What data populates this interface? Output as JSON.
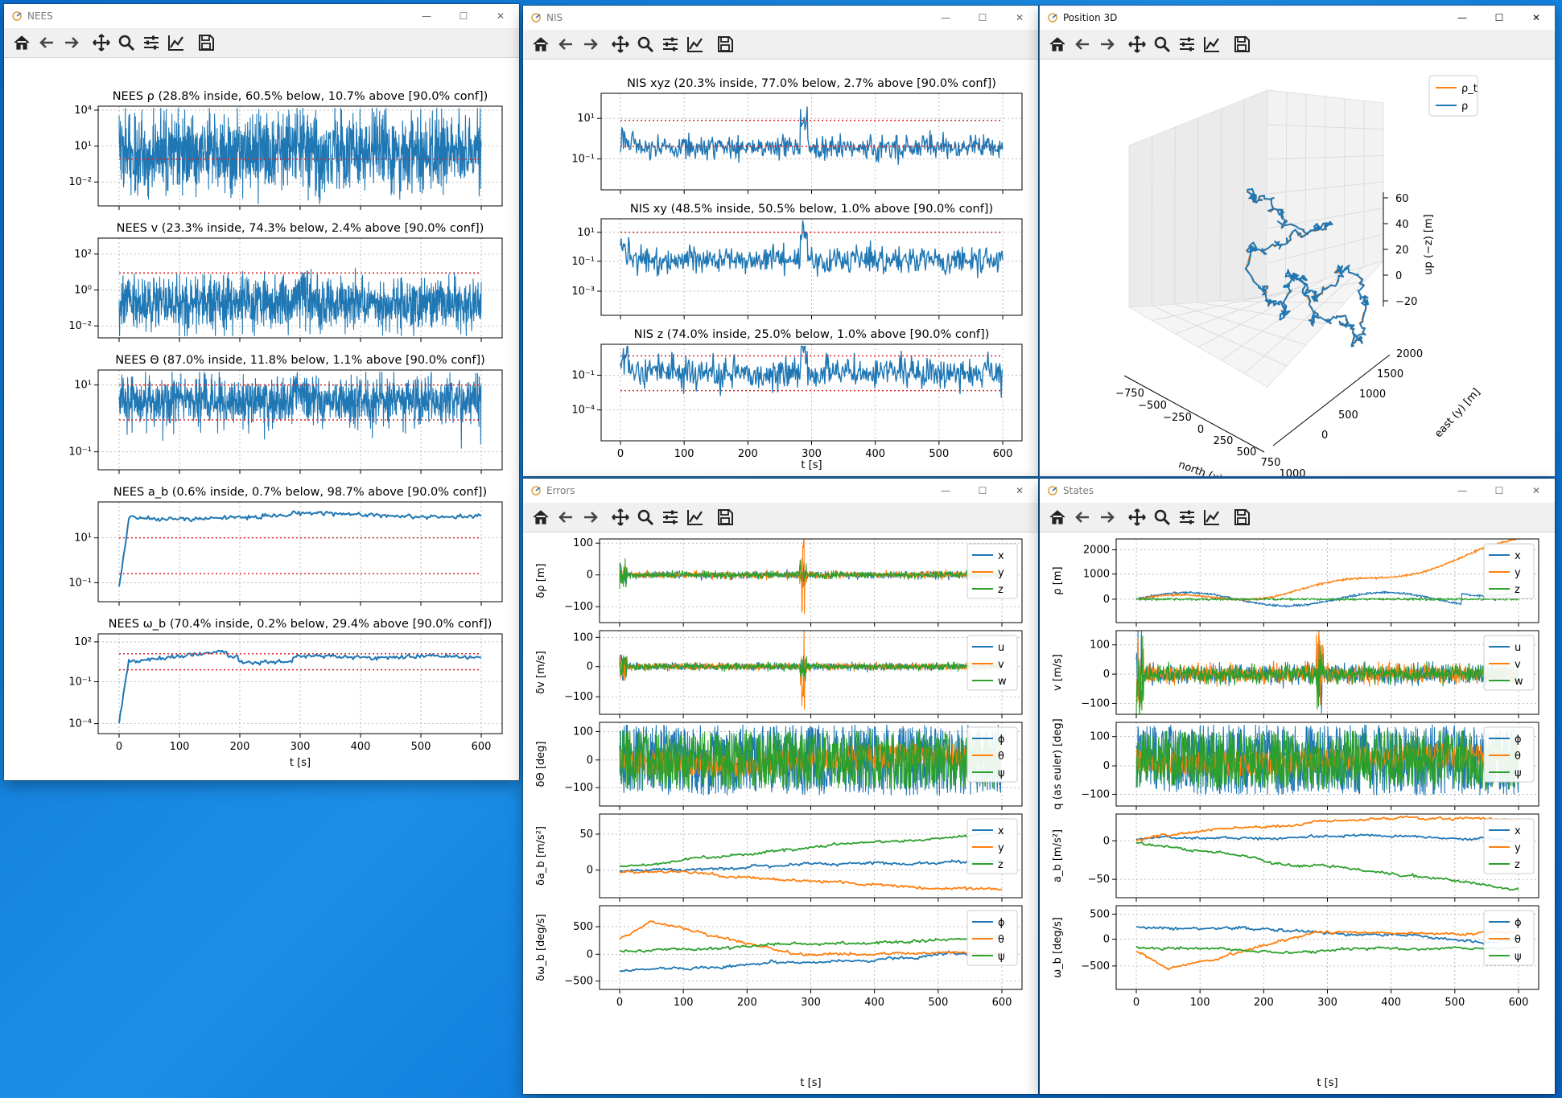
{
  "taskbar": {},
  "windows": {
    "nees": {
      "title": "NEES",
      "subplots": [
        {
          "title": "NEES ρ (28.8% inside,  60.5% below, 10.7% above [90.0% conf])",
          "yticks": [
            "10⁴",
            "10¹",
            "10⁻²"
          ]
        },
        {
          "title": "NEES v (23.3% inside,  74.3% below, 2.4% above [90.0% conf])",
          "yticks": [
            "10²",
            "10⁰",
            "10⁻²"
          ]
        },
        {
          "title": "NEES Θ (87.0% inside,  11.8% below, 1.1% above [90.0% conf])",
          "yticks": [
            "10¹",
            "10⁻¹"
          ]
        },
        {
          "title": "NEES a_b (0.6% inside,  0.7% below, 98.7% above [90.0% conf])",
          "yticks": [
            "10¹",
            "10⁻¹"
          ]
        },
        {
          "title": "NEES ω_b (70.4% inside,  0.2% below, 29.4% above [90.0% conf])",
          "yticks": [
            "10²",
            "10⁻¹",
            "10⁻⁴"
          ]
        }
      ],
      "xticks": [
        "0",
        "100",
        "200",
        "300",
        "400",
        "500",
        "600"
      ],
      "xlabel": "t [s]"
    },
    "nis": {
      "title": "NIS",
      "subplots": [
        {
          "title": "NIS xyz (20.3% inside, 77.0% below, 2.7% above  [90.0% conf])",
          "yticks": [
            "10¹",
            "10⁻¹"
          ]
        },
        {
          "title": "NIS xy (48.5% inside, 50.5% below, 1.0% above  [90.0% conf])",
          "yticks": [
            "10¹",
            "10⁻¹",
            "10⁻³"
          ]
        },
        {
          "title": "NIS z (74.0% inside, 25.0% below, 1.0% above  [90.0% conf])",
          "yticks": [
            "10⁻¹",
            "10⁻⁴"
          ]
        }
      ],
      "xticks": [
        "0",
        "100",
        "200",
        "300",
        "400",
        "500",
        "600"
      ],
      "xlabel": "t [s]"
    },
    "position3d": {
      "title": "Position 3D",
      "legend": [
        "ρ_t",
        "ρ"
      ],
      "zticks": [
        "60",
        "40",
        "20",
        "0",
        "−20"
      ],
      "zlabel": "up (−z) [m]",
      "xticks": [
        "−750",
        "−500",
        "−250",
        "0",
        "250",
        "500",
        "750",
        "1000"
      ],
      "xlabel": "north (x) [m]",
      "yticks": [
        "0",
        "500",
        "1000",
        "1500",
        "2000"
      ],
      "ylabel": "east (y) [m]"
    },
    "errors": {
      "title": "Errors",
      "subplots": [
        {
          "ylabel": "δρ [m]",
          "yticks": [
            "100",
            "0",
            "−100"
          ],
          "legend": [
            "x",
            "y",
            "z"
          ]
        },
        {
          "ylabel": "δv [m/s]",
          "yticks": [
            "100",
            "0",
            "−100"
          ],
          "legend": [
            "u",
            "v",
            "w"
          ]
        },
        {
          "ylabel": "δΘ [deg]",
          "yticks": [
            "100",
            "0",
            "−100"
          ],
          "legend": [
            "ϕ",
            "θ",
            "ψ"
          ]
        },
        {
          "ylabel": "δa_b [m/s²]",
          "yticks": [
            "50",
            "0"
          ],
          "legend": [
            "x",
            "y",
            "z"
          ]
        },
        {
          "ylabel": "δω_b [deg/s]",
          "yticks": [
            "500",
            "0",
            "−500"
          ],
          "legend": [
            "ϕ",
            "θ",
            "ψ"
          ]
        }
      ],
      "xticks": [
        "0",
        "100",
        "200",
        "300",
        "400",
        "500",
        "600"
      ],
      "xlabel": "t [s]"
    },
    "states": {
      "title": "States",
      "subplots": [
        {
          "ylabel": "ρ [m]",
          "yticks": [
            "2000",
            "1000",
            "0"
          ],
          "legend": [
            "x",
            "y",
            "z"
          ]
        },
        {
          "ylabel": "v [m/s]",
          "yticks": [
            "100",
            "0",
            "−100"
          ],
          "legend": [
            "u",
            "v",
            "w"
          ]
        },
        {
          "ylabel": "q (as euler) [deg]",
          "yticks": [
            "100",
            "0",
            "−100"
          ],
          "legend": [
            "ϕ",
            "θ",
            "ψ"
          ]
        },
        {
          "ylabel": "a_b [m/s²]",
          "yticks": [
            "0",
            "−50"
          ],
          "legend": [
            "x",
            "y",
            "z"
          ]
        },
        {
          "ylabel": "ω_b [deg/s]",
          "yticks": [
            "500",
            "0",
            "−500"
          ],
          "legend": [
            "ϕ",
            "θ",
            "ψ"
          ]
        }
      ],
      "xticks": [
        "0",
        "100",
        "200",
        "300",
        "400",
        "500",
        "600"
      ],
      "xlabel": "t [s]"
    }
  },
  "toolbar_icons": [
    "home-icon",
    "back-arrow-icon",
    "forward-arrow-icon",
    "pan-move-icon",
    "zoom-magnifier-icon",
    "subplots-config-icon",
    "edit-axis-icon",
    "save-floppy-icon"
  ],
  "colors": {
    "series1": "#1f77b4",
    "series2": "#ff7f0e",
    "series3": "#2ca02c",
    "bounds": "#d62728",
    "grid": "#b0b0b0"
  }
}
